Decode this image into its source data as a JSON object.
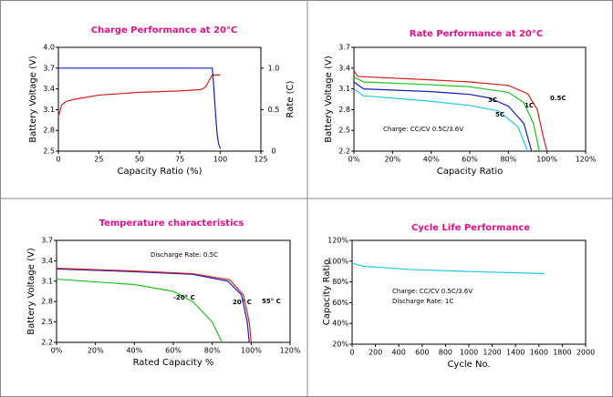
{
  "chart_data": [
    {
      "type": "line",
      "title": "Charge Performance at 20°C",
      "xlabel": "Capacity Ratio (%)",
      "ylabel": "Battery Voltage (V)",
      "y2label": "Rate (C)",
      "xlim": [
        0,
        125
      ],
      "xticks": [
        0,
        25,
        50,
        75,
        100,
        125
      ],
      "ylim": [
        2.5,
        4
      ],
      "yticks": [
        2.5,
        2.8,
        3.1,
        3.4,
        3.7,
        {
          "value": 4,
          "label": "4.0"
        }
      ],
      "y2lim": [
        0,
        1.25
      ],
      "y2ticks": [
        0,
        0.5,
        {
          "value": 1,
          "label": "1.0"
        }
      ],
      "series": [
        {
          "name": "Battery Voltage",
          "color": "#d42020",
          "x": [
            0,
            2,
            5,
            10,
            25,
            50,
            75,
            88,
            91,
            93,
            95,
            100
          ],
          "values": [
            3.0,
            3.17,
            3.22,
            3.25,
            3.31,
            3.35,
            3.37,
            3.39,
            3.43,
            3.52,
            3.6,
            3.6
          ]
        },
        {
          "name": "Rate",
          "color": "#1020c0",
          "axis": "y2",
          "x": [
            0,
            95,
            96,
            97,
            98,
            99,
            100
          ],
          "values": [
            1.0,
            1.0,
            0.75,
            0.45,
            0.2,
            0.08,
            0.03
          ]
        }
      ]
    },
    {
      "type": "line",
      "title": "Rate Performance at 20°C",
      "xlabel": "Capacity Ratio",
      "ylabel": "Battery Voltage (V)",
      "xlim": [
        0,
        120
      ],
      "xticks": [
        {
          "value": 0,
          "label": "0%"
        },
        {
          "value": 20,
          "label": "20%"
        },
        {
          "value": 40,
          "label": "40%"
        },
        {
          "value": 60,
          "label": "60%"
        },
        {
          "value": 80,
          "label": "80%"
        },
        {
          "value": 100,
          "label": "100%"
        },
        {
          "value": 120,
          "label": "120%"
        }
      ],
      "ylim": [
        2.2,
        3.7
      ],
      "yticks": [
        2.2,
        2.5,
        2.8,
        3.1,
        3.4,
        3.7
      ],
      "annotations": [
        "Charge: CC/CV 0.5C/3.6V"
      ],
      "series": [
        {
          "name": "0.5C",
          "color": "#d42020",
          "x": [
            0,
            2,
            40,
            60,
            80,
            90,
            95,
            98,
            100
          ],
          "values": [
            3.36,
            3.28,
            3.23,
            3.2,
            3.15,
            3.03,
            2.8,
            2.41,
            2.2
          ]
        },
        {
          "name": "1C",
          "color": "#20c020",
          "x": [
            0,
            5,
            40,
            60,
            80,
            88,
            93,
            96
          ],
          "values": [
            3.27,
            3.2,
            3.16,
            3.13,
            3.05,
            2.9,
            2.6,
            2.2
          ]
        },
        {
          "name": "3C",
          "color": "#1020c0",
          "x": [
            0,
            5,
            40,
            60,
            70,
            80,
            88,
            92
          ],
          "values": [
            3.2,
            3.1,
            3.06,
            3.02,
            2.97,
            2.85,
            2.6,
            2.2
          ]
        },
        {
          "name": "5C",
          "color": "#20c8e8",
          "x": [
            0,
            5,
            40,
            60,
            75,
            85,
            90
          ],
          "values": [
            3.1,
            3.0,
            2.92,
            2.86,
            2.78,
            2.55,
            2.2
          ]
        }
      ]
    },
    {
      "type": "line",
      "title": "Temperature characteristics",
      "xlabel": "Rated Capacity %",
      "ylabel": "Battery Voltage (V)",
      "xlim": [
        0,
        120
      ],
      "xticks": [
        {
          "value": 0,
          "label": "0%"
        },
        {
          "value": 20,
          "label": "20%"
        },
        {
          "value": 40,
          "label": "40%"
        },
        {
          "value": 60,
          "label": "60%"
        },
        {
          "value": 80,
          "label": "80%"
        },
        {
          "value": 100,
          "label": "100%"
        },
        {
          "value": 120,
          "label": "120%"
        }
      ],
      "ylim": [
        2.2,
        3.7
      ],
      "yticks": [
        2.2,
        2.5,
        2.8,
        3.1,
        3.4,
        3.7
      ],
      "annotations": [
        "Discharge Rate: 0.5C"
      ],
      "series": [
        {
          "name": "-20° C",
          "color": "#20c020",
          "x": [
            0,
            10,
            40,
            60,
            70,
            80,
            85
          ],
          "values": [
            3.13,
            3.11,
            3.05,
            2.95,
            2.8,
            2.5,
            2.2
          ]
        },
        {
          "name": "20° C",
          "color": "#1020c0",
          "x": [
            0,
            40,
            70,
            88,
            95,
            98,
            99
          ],
          "values": [
            3.28,
            3.24,
            3.2,
            3.1,
            2.9,
            2.5,
            2.2
          ]
        },
        {
          "name": "55° C",
          "color": "#d42020",
          "x": [
            0,
            40,
            70,
            89,
            96,
            99,
            100
          ],
          "values": [
            3.29,
            3.25,
            3.21,
            3.12,
            2.9,
            2.5,
            2.2
          ]
        }
      ]
    },
    {
      "type": "line",
      "title": "Cycle Life Performance",
      "xlabel": "Cycle No.",
      "ylabel": "Capacity Ratio",
      "xlim": [
        0,
        2000
      ],
      "xticks": [
        0,
        200,
        400,
        600,
        800,
        1000,
        1200,
        1400,
        1600,
        1800,
        2000
      ],
      "ylim": [
        20,
        120
      ],
      "yticks": [
        {
          "value": 20,
          "label": "20%"
        },
        {
          "value": 40,
          "label": "40%"
        },
        {
          "value": 60,
          "label": "60%"
        },
        {
          "value": 80,
          "label": "80%"
        },
        {
          "value": 100,
          "label": "100%"
        },
        {
          "value": 120,
          "label": "120%"
        }
      ],
      "annotations": [
        "Charge: CC/CV 0.5C/3.6V",
        "Discharge Rate: 1C"
      ],
      "series": [
        {
          "name": "Capacity",
          "color": "#20c8e8",
          "x": [
            0,
            100,
            500,
            1000,
            1650
          ],
          "values": [
            98,
            95,
            92,
            90,
            88
          ]
        }
      ]
    }
  ]
}
